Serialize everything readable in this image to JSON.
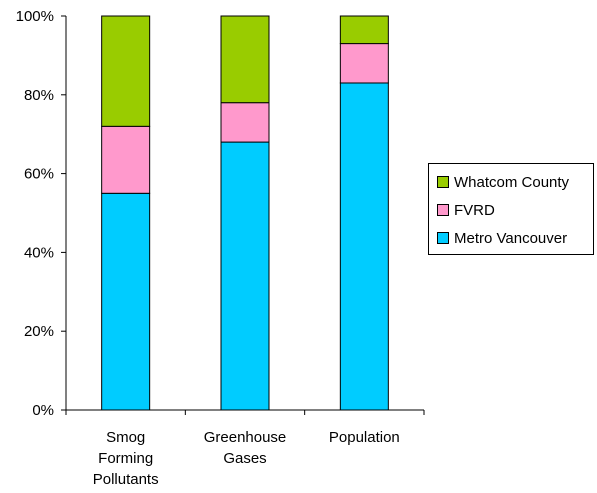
{
  "chart_data": {
    "type": "bar",
    "stacked": true,
    "percent": true,
    "categories": [
      [
        "Smog",
        "Forming",
        "Pollutants"
      ],
      [
        "Greenhouse",
        "Gases"
      ],
      [
        "Population"
      ]
    ],
    "series": [
      {
        "name": "Metro Vancouver",
        "color": "#00CCFF",
        "values": [
          55,
          68,
          83
        ]
      },
      {
        "name": "FVRD",
        "color": "#FF99CC",
        "values": [
          17,
          10,
          10
        ]
      },
      {
        "name": "Whatcom County",
        "color": "#99CC00",
        "values": [
          28,
          22,
          7
        ]
      }
    ],
    "ylim": [
      0,
      100
    ],
    "yticks": [
      "0%",
      "20%",
      "40%",
      "60%",
      "80%",
      "100%"
    ],
    "legend_order": [
      "Whatcom County",
      "FVRD",
      "Metro Vancouver"
    ],
    "legend_position": "right",
    "grid": false
  }
}
